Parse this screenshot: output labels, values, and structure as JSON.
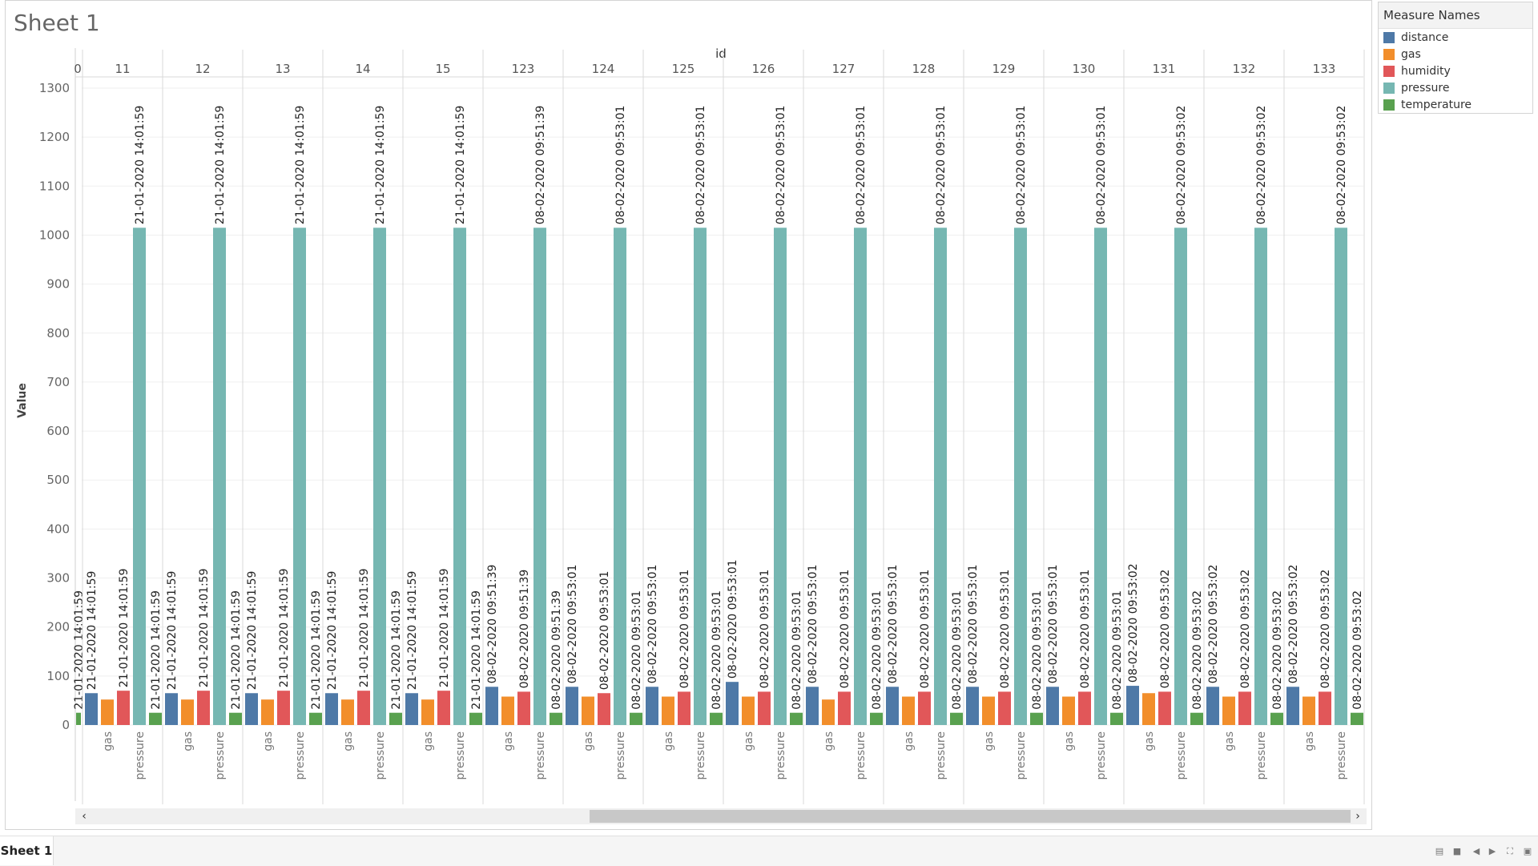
{
  "sheet": {
    "title": "Sheet 1"
  },
  "legend": {
    "title": "Measure Names",
    "items": [
      {
        "label": "distance",
        "color": "#4e79a7"
      },
      {
        "label": "gas",
        "color": "#f28e2b"
      },
      {
        "label": "humidity",
        "color": "#e15759"
      },
      {
        "label": "pressure",
        "color": "#76b7b2"
      },
      {
        "label": "temperature",
        "color": "#59a14f"
      }
    ]
  },
  "tabs": {
    "sheet1_label": "Sheet 1"
  },
  "chart_data": {
    "type": "bar",
    "column_header": "id",
    "first_partial_column_label": "0",
    "columns": [
      "11",
      "12",
      "13",
      "14",
      "15",
      "123",
      "124",
      "125",
      "126",
      "127",
      "128",
      "129",
      "130",
      "131",
      "132",
      "133"
    ],
    "ylabel": "Value",
    "ylim": [
      0,
      1300
    ],
    "yticks": [
      0,
      100,
      200,
      300,
      400,
      500,
      600,
      700,
      800,
      900,
      1000,
      1100,
      1200,
      1300
    ],
    "measures": [
      "distance",
      "gas",
      "humidity",
      "pressure",
      "temperature"
    ],
    "measure_axis_labels": [
      "",
      "gas",
      "",
      "pressure",
      ""
    ],
    "series": [
      {
        "name": "distance",
        "values": [
          65,
          65,
          65,
          65,
          65,
          78,
          78,
          78,
          88,
          78,
          78,
          78,
          78,
          80,
          78,
          78
        ]
      },
      {
        "name": "gas",
        "values": [
          52,
          52,
          52,
          52,
          52,
          58,
          58,
          58,
          58,
          52,
          58,
          58,
          58,
          65,
          58,
          58
        ]
      },
      {
        "name": "humidity",
        "values": [
          70,
          70,
          70,
          70,
          70,
          68,
          65,
          68,
          68,
          68,
          68,
          68,
          68,
          68,
          68,
          68
        ]
      },
      {
        "name": "pressure",
        "values": [
          1015,
          1015,
          1015,
          1015,
          1015,
          1015,
          1015,
          1015,
          1015,
          1015,
          1015,
          1015,
          1015,
          1015,
          1015,
          1015
        ]
      },
      {
        "name": "temperature",
        "values": [
          25,
          25,
          25,
          25,
          25,
          25,
          25,
          25,
          25,
          25,
          25,
          25,
          25,
          25,
          25,
          25
        ]
      }
    ],
    "timestamps": [
      "21-01-2020 14:01:59",
      "21-01-2020 14:01:59",
      "21-01-2020 14:01:59",
      "21-01-2020 14:01:59",
      "21-01-2020 14:01:59",
      "08-02-2020 09:51:39",
      "08-02-2020 09:53:01",
      "08-02-2020 09:53:01",
      "08-02-2020 09:53:01",
      "08-02-2020 09:53:01",
      "08-02-2020 09:53:01",
      "08-02-2020 09:53:01",
      "08-02-2020 09:53:01",
      "08-02-2020 09:53:02",
      "08-02-2020 09:53:02",
      "08-02-2020 09:53:02"
    ],
    "partial_column_label": "21-01-2020 14:01:59",
    "grid": true,
    "legend_position": "right"
  }
}
